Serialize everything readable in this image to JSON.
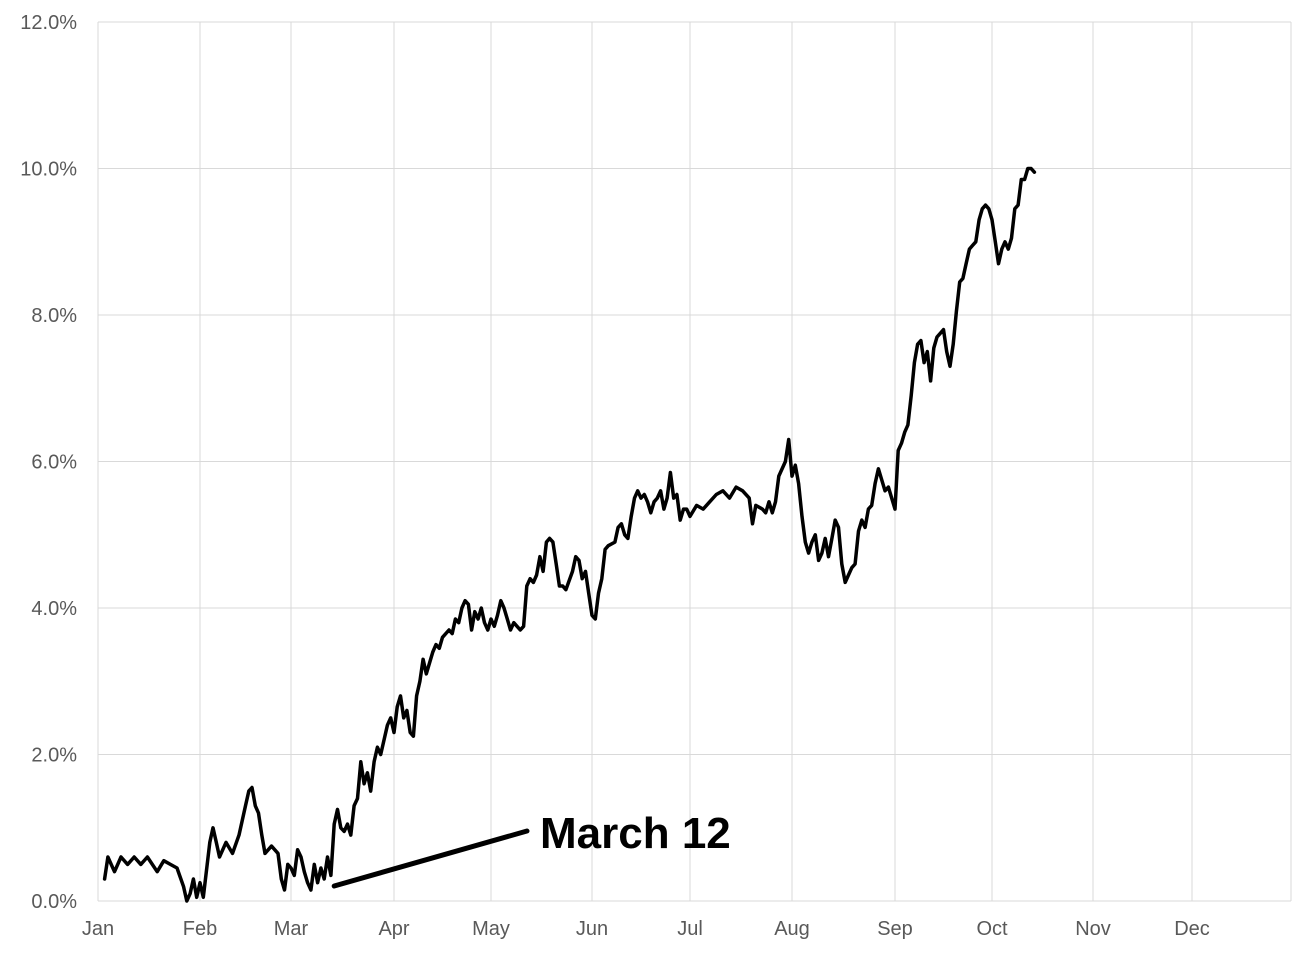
{
  "chart_data": {
    "type": "line",
    "title": "",
    "xlabel": "",
    "ylabel": "",
    "ylim": [
      0,
      12
    ],
    "xlim": [
      0,
      365
    ],
    "grid": true,
    "legend": "none",
    "x_ticks": [
      {
        "label": "Jan",
        "day": 0
      },
      {
        "label": "Feb",
        "day": 31
      },
      {
        "label": "Mar",
        "day": 59
      },
      {
        "label": "Apr",
        "day": 90
      },
      {
        "label": "May",
        "day": 120
      },
      {
        "label": "Jun",
        "day": 151
      },
      {
        "label": "Jul",
        "day": 181
      },
      {
        "label": "Aug",
        "day": 212
      },
      {
        "label": "Sep",
        "day": 243
      },
      {
        "label": "Oct",
        "day": 273
      },
      {
        "label": "Nov",
        "day": 304
      },
      {
        "label": "Dec",
        "day": 334
      }
    ],
    "y_ticks": [
      {
        "label": "0.0%",
        "value": 0
      },
      {
        "label": "2.0%",
        "value": 2
      },
      {
        "label": "4.0%",
        "value": 4
      },
      {
        "label": "6.0%",
        "value": 6
      },
      {
        "label": "8.0%",
        "value": 8
      },
      {
        "label": "10.0%",
        "value": 10
      },
      {
        "label": "12.0%",
        "value": 12
      }
    ],
    "series": [
      {
        "color": "#000000",
        "points": [
          [
            2,
            0.3
          ],
          [
            3,
            0.6
          ],
          [
            5,
            0.4
          ],
          [
            7,
            0.6
          ],
          [
            9,
            0.5
          ],
          [
            11,
            0.6
          ],
          [
            13,
            0.5
          ],
          [
            15,
            0.6
          ],
          [
            18,
            0.4
          ],
          [
            20,
            0.55
          ],
          [
            22,
            0.5
          ],
          [
            24,
            0.45
          ],
          [
            26,
            0.2
          ],
          [
            27,
            0.0
          ],
          [
            28,
            0.1
          ],
          [
            29,
            0.3
          ],
          [
            30,
            0.05
          ],
          [
            31,
            0.25
          ],
          [
            32,
            0.05
          ],
          [
            34,
            0.8
          ],
          [
            35,
            1.0
          ],
          [
            36,
            0.8
          ],
          [
            37,
            0.6
          ],
          [
            39,
            0.8
          ],
          [
            41,
            0.65
          ],
          [
            43,
            0.9
          ],
          [
            45,
            1.3
          ],
          [
            46,
            1.5
          ],
          [
            47,
            1.55
          ],
          [
            48,
            1.3
          ],
          [
            49,
            1.2
          ],
          [
            50,
            0.9
          ],
          [
            51,
            0.65
          ],
          [
            53,
            0.75
          ],
          [
            55,
            0.65
          ],
          [
            56,
            0.3
          ],
          [
            57,
            0.15
          ],
          [
            58,
            0.5
          ],
          [
            59,
            0.45
          ],
          [
            60,
            0.35
          ],
          [
            61,
            0.7
          ],
          [
            62,
            0.6
          ],
          [
            63,
            0.4
          ],
          [
            64,
            0.25
          ],
          [
            65,
            0.15
          ],
          [
            66,
            0.5
          ],
          [
            67,
            0.25
          ],
          [
            68,
            0.45
          ],
          [
            69,
            0.3
          ],
          [
            70,
            0.6
          ],
          [
            71,
            0.35
          ],
          [
            72,
            1.05
          ],
          [
            73,
            1.25
          ],
          [
            74,
            1.0
          ],
          [
            75,
            0.95
          ],
          [
            76,
            1.05
          ],
          [
            77,
            0.9
          ],
          [
            78,
            1.3
          ],
          [
            79,
            1.4
          ],
          [
            80,
            1.9
          ],
          [
            81,
            1.6
          ],
          [
            82,
            1.75
          ],
          [
            83,
            1.5
          ],
          [
            84,
            1.9
          ],
          [
            85,
            2.1
          ],
          [
            86,
            2.0
          ],
          [
            88,
            2.4
          ],
          [
            89,
            2.5
          ],
          [
            90,
            2.3
          ],
          [
            91,
            2.65
          ],
          [
            92,
            2.8
          ],
          [
            93,
            2.5
          ],
          [
            94,
            2.6
          ],
          [
            95,
            2.3
          ],
          [
            96,
            2.25
          ],
          [
            97,
            2.8
          ],
          [
            98,
            3.0
          ],
          [
            99,
            3.3
          ],
          [
            100,
            3.1
          ],
          [
            102,
            3.4
          ],
          [
            103,
            3.5
          ],
          [
            104,
            3.45
          ],
          [
            105,
            3.6
          ],
          [
            107,
            3.7
          ],
          [
            108,
            3.65
          ],
          [
            109,
            3.85
          ],
          [
            110,
            3.8
          ],
          [
            111,
            4.0
          ],
          [
            112,
            4.1
          ],
          [
            113,
            4.05
          ],
          [
            114,
            3.7
          ],
          [
            115,
            3.95
          ],
          [
            116,
            3.85
          ],
          [
            117,
            4.0
          ],
          [
            118,
            3.8
          ],
          [
            119,
            3.7
          ],
          [
            120,
            3.85
          ],
          [
            121,
            3.75
          ],
          [
            122,
            3.9
          ],
          [
            123,
            4.1
          ],
          [
            124,
            4.0
          ],
          [
            125,
            3.85
          ],
          [
            126,
            3.7
          ],
          [
            127,
            3.8
          ],
          [
            129,
            3.7
          ],
          [
            130,
            3.75
          ],
          [
            131,
            4.3
          ],
          [
            132,
            4.4
          ],
          [
            133,
            4.35
          ],
          [
            134,
            4.45
          ],
          [
            135,
            4.7
          ],
          [
            136,
            4.5
          ],
          [
            137,
            4.9
          ],
          [
            138,
            4.95
          ],
          [
            139,
            4.9
          ],
          [
            140,
            4.6
          ],
          [
            141,
            4.3
          ],
          [
            142,
            4.3
          ],
          [
            143,
            4.25
          ],
          [
            145,
            4.5
          ],
          [
            146,
            4.7
          ],
          [
            147,
            4.65
          ],
          [
            148,
            4.4
          ],
          [
            149,
            4.5
          ],
          [
            150,
            4.2
          ],
          [
            151,
            3.9
          ],
          [
            152,
            3.85
          ],
          [
            153,
            4.2
          ],
          [
            154,
            4.4
          ],
          [
            155,
            4.8
          ],
          [
            156,
            4.85
          ],
          [
            158,
            4.9
          ],
          [
            159,
            5.1
          ],
          [
            160,
            5.15
          ],
          [
            161,
            5.0
          ],
          [
            162,
            4.95
          ],
          [
            163,
            5.25
          ],
          [
            164,
            5.5
          ],
          [
            165,
            5.6
          ],
          [
            166,
            5.5
          ],
          [
            167,
            5.55
          ],
          [
            168,
            5.45
          ],
          [
            169,
            5.3
          ],
          [
            170,
            5.45
          ],
          [
            171,
            5.5
          ],
          [
            172,
            5.6
          ],
          [
            173,
            5.35
          ],
          [
            174,
            5.5
          ],
          [
            175,
            5.85
          ],
          [
            176,
            5.5
          ],
          [
            177,
            5.55
          ],
          [
            178,
            5.2
          ],
          [
            179,
            5.35
          ],
          [
            180,
            5.35
          ],
          [
            181,
            5.25
          ],
          [
            183,
            5.4
          ],
          [
            185,
            5.35
          ],
          [
            187,
            5.45
          ],
          [
            189,
            5.55
          ],
          [
            191,
            5.6
          ],
          [
            193,
            5.5
          ],
          [
            195,
            5.65
          ],
          [
            197,
            5.6
          ],
          [
            199,
            5.5
          ],
          [
            200,
            5.15
          ],
          [
            201,
            5.4
          ],
          [
            203,
            5.35
          ],
          [
            204,
            5.3
          ],
          [
            205,
            5.45
          ],
          [
            206,
            5.3
          ],
          [
            207,
            5.45
          ],
          [
            208,
            5.8
          ],
          [
            210,
            6.0
          ],
          [
            211,
            6.3
          ],
          [
            212,
            5.8
          ],
          [
            213,
            5.95
          ],
          [
            214,
            5.7
          ],
          [
            215,
            5.25
          ],
          [
            216,
            4.9
          ],
          [
            217,
            4.75
          ],
          [
            218,
            4.9
          ],
          [
            219,
            5.0
          ],
          [
            220,
            4.65
          ],
          [
            221,
            4.75
          ],
          [
            222,
            4.95
          ],
          [
            223,
            4.7
          ],
          [
            224,
            4.95
          ],
          [
            225,
            5.2
          ],
          [
            226,
            5.1
          ],
          [
            227,
            4.6
          ],
          [
            228,
            4.35
          ],
          [
            229,
            4.45
          ],
          [
            230,
            4.55
          ],
          [
            231,
            4.6
          ],
          [
            232,
            5.05
          ],
          [
            233,
            5.2
          ],
          [
            234,
            5.1
          ],
          [
            235,
            5.35
          ],
          [
            236,
            5.4
          ],
          [
            237,
            5.7
          ],
          [
            238,
            5.9
          ],
          [
            239,
            5.75
          ],
          [
            240,
            5.6
          ],
          [
            241,
            5.65
          ],
          [
            242,
            5.5
          ],
          [
            243,
            5.35
          ],
          [
            244,
            6.15
          ],
          [
            245,
            6.25
          ],
          [
            246,
            6.4
          ],
          [
            247,
            6.5
          ],
          [
            248,
            6.9
          ],
          [
            249,
            7.35
          ],
          [
            250,
            7.6
          ],
          [
            251,
            7.65
          ],
          [
            252,
            7.35
          ],
          [
            253,
            7.5
          ],
          [
            254,
            7.1
          ],
          [
            255,
            7.55
          ],
          [
            256,
            7.7
          ],
          [
            257,
            7.75
          ],
          [
            258,
            7.8
          ],
          [
            259,
            7.5
          ],
          [
            260,
            7.3
          ],
          [
            261,
            7.6
          ],
          [
            262,
            8.05
          ],
          [
            263,
            8.45
          ],
          [
            264,
            8.5
          ],
          [
            265,
            8.7
          ],
          [
            266,
            8.9
          ],
          [
            267,
            8.95
          ],
          [
            268,
            9.0
          ],
          [
            269,
            9.3
          ],
          [
            270,
            9.45
          ],
          [
            271,
            9.5
          ],
          [
            272,
            9.45
          ],
          [
            273,
            9.3
          ],
          [
            274,
            9.0
          ],
          [
            275,
            8.7
          ],
          [
            276,
            8.9
          ],
          [
            277,
            9.0
          ],
          [
            278,
            8.9
          ],
          [
            279,
            9.05
          ],
          [
            280,
            9.45
          ],
          [
            281,
            9.5
          ],
          [
            282,
            9.85
          ],
          [
            283,
            9.85
          ],
          [
            284,
            10.0
          ],
          [
            285,
            10.0
          ],
          [
            286,
            9.95
          ]
        ]
      }
    ],
    "annotations": [
      {
        "text": "March 12",
        "point_day": 72,
        "point_value": 0.15
      }
    ]
  }
}
